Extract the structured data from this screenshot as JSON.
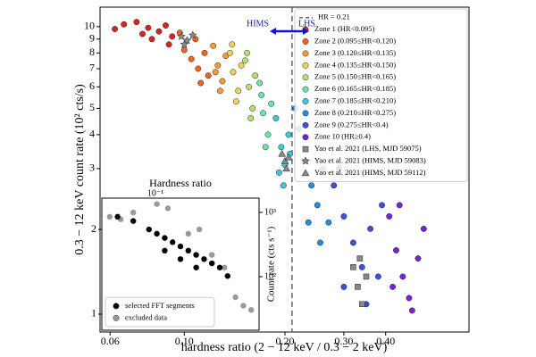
{
  "chart_data": [
    {
      "type": "scatter",
      "x_label": "hardness ratio (2 − 12 keV / 0.3 − 2 keV)",
      "y_label": "0.3 − 12 keV count rate (10² cts/s)",
      "xscale": "log",
      "yscale": "log",
      "xlim": [
        0.056,
        0.71
      ],
      "ylim": [
        0.75,
        11.8
      ],
      "xticks": [
        0.06,
        {
          "value": 0.1,
          "label": "0.10"
        },
        {
          "value": 0.2,
          "label": "0.20"
        },
        {
          "value": 0.3,
          "label": "0.30"
        },
        {
          "value": 0.4,
          "label": "0.40"
        }
      ],
      "yticks": [
        3,
        4,
        5,
        6,
        7,
        8,
        9,
        10
      ],
      "vline": {
        "value": 0.21,
        "label": "HR = 0.21"
      },
      "annotations": [
        "HIMS",
        "LHS"
      ],
      "legend": "upper right",
      "series": [
        {
          "name": "Zone 1 (HR<0.095)",
          "color": "#d8241a",
          "marker": "circle",
          "x": [
            0.066,
            0.072,
            0.078,
            0.084,
            0.088,
            0.092,
            0.08,
            0.09,
            0.062,
            0.075
          ],
          "values": [
            10.2,
            10.4,
            9.9,
            9.6,
            10.1,
            9.2,
            9.0,
            8.6,
            9.8,
            9.4
          ]
        },
        {
          "name": "Zone 2 (0.095≤HR<0.120)",
          "color": "#ee6420",
          "marker": "circle",
          "x": [
            0.097,
            0.1,
            0.105,
            0.11,
            0.115,
            0.118,
            0.108,
            0.112
          ],
          "values": [
            9.5,
            8.2,
            7.6,
            7.0,
            8.0,
            6.6,
            9.0,
            6.2
          ]
        },
        {
          "name": "Zone 3 (0.120≤HR<0.135)",
          "color": "#f39c38",
          "marker": "circle",
          "x": [
            0.122,
            0.126,
            0.13,
            0.133,
            0.128,
            0.124
          ],
          "values": [
            8.5,
            7.2,
            6.3,
            7.8,
            5.8,
            6.8
          ]
        },
        {
          "name": "Zone 4 (0.135≤HR<0.150)",
          "color": "#eed35a",
          "marker": "circle",
          "x": [
            0.137,
            0.14,
            0.145,
            0.148,
            0.143,
            0.139
          ],
          "values": [
            8.0,
            6.8,
            5.8,
            7.2,
            5.3,
            8.6
          ]
        },
        {
          "name": "Zone 5 (0.150≤HR<0.165)",
          "color": "#b2e26e",
          "marker": "circle",
          "x": [
            0.152,
            0.156,
            0.16,
            0.163,
            0.158,
            0.154
          ],
          "values": [
            7.5,
            6.0,
            5.0,
            6.6,
            4.6,
            8.0
          ]
        },
        {
          "name": "Zone 6 (0.165≤HR<0.185)",
          "color": "#6ee6a2",
          "marker": "circle",
          "x": [
            0.168,
            0.172,
            0.178,
            0.182,
            0.175,
            0.17
          ],
          "values": [
            6.2,
            4.8,
            4.0,
            5.2,
            3.6,
            5.6
          ]
        },
        {
          "name": "Zone 7 (0.185≤HR<0.210)",
          "color": "#3ccbd6",
          "marker": "circle",
          "x": [
            0.188,
            0.195,
            0.2,
            0.205,
            0.198,
            0.207,
            0.192
          ],
          "values": [
            4.6,
            3.6,
            3.1,
            4.0,
            2.6,
            3.4,
            2.9
          ]
        },
        {
          "name": "Zone 8 (0.210≤HR<0.275)",
          "color": "#1f8fe0",
          "marker": "circle",
          "x": [
            0.22,
            0.23,
            0.24,
            0.25,
            0.26,
            0.27,
            0.235,
            0.215,
            0.255
          ],
          "values": [
            4.2,
            3.2,
            2.6,
            2.2,
            3.0,
            1.9,
            1.9,
            5.0,
            1.6
          ]
        },
        {
          "name": "Zone 9 (0.275≤HR<0.4)",
          "color": "#3d4fdc",
          "marker": "circle",
          "x": [
            0.28,
            0.3,
            0.32,
            0.34,
            0.36,
            0.38,
            0.3,
            0.39,
            0.29,
            0.35
          ],
          "values": [
            2.6,
            2.0,
            1.6,
            1.3,
            1.8,
            1.2,
            1.1,
            2.2,
            3.0,
            0.95
          ]
        },
        {
          "name": "Zone 10 (HR≥0.4)",
          "color": "#7a22d4",
          "marker": "circle",
          "x": [
            0.41,
            0.43,
            0.45,
            0.47,
            0.5,
            0.44,
            0.48,
            0.42,
            0.52
          ],
          "values": [
            2.0,
            1.5,
            1.2,
            1.0,
            1.4,
            2.2,
            0.9,
            1.1,
            1.8
          ]
        },
        {
          "name": "Yao et al. 2021 (LHS, MJD 59075)",
          "color": "#888888",
          "marker": "square",
          "x": [
            0.32,
            0.33,
            0.34,
            0.35,
            0.335
          ],
          "values": [
            1.3,
            1.1,
            0.95,
            1.2,
            1.4
          ]
        },
        {
          "name": "Yao et al. 2021 (HIMS, MJD 59083)",
          "color": "#888888",
          "marker": "star",
          "x": [
            0.098,
            0.102,
            0.106,
            0.1
          ],
          "values": [
            9.2,
            8.9,
            9.3,
            8.6
          ]
        },
        {
          "name": "Yao et al. 2021 (HIMS, MJD 59112)",
          "color": "#888888",
          "marker": "triangle",
          "x": [
            0.196,
            0.2,
            0.205,
            0.202
          ],
          "values": [
            3.4,
            3.2,
            3.3,
            3.0
          ]
        }
      ]
    },
    {
      "type": "scatter",
      "title": "Hardness ratio",
      "offset_text": "10⁻¹",
      "y2_label": "Count rate (cts s⁻¹)",
      "xlim": [
        0,
        1
      ],
      "ylim": [
        0.81,
        2.37
      ],
      "y2scale": "log",
      "y2lim": [
        14.7,
        1668
      ],
      "yticks": [
        1,
        2
      ],
      "y2ticks": [
        {
          "value": 100,
          "label": "10²"
        },
        {
          "value": 1000,
          "label": "10³"
        }
      ],
      "legend": "lower left",
      "series": [
        {
          "name": "excluded data",
          "color": "#999999",
          "x": [
            0.05,
            0.12,
            0.2,
            0.35,
            0.42,
            0.55,
            0.62,
            0.7,
            0.78,
            0.9,
            0.95,
            0.85
          ],
          "values": [
            2.15,
            2.12,
            2.2,
            2.3,
            2.25,
            1.95,
            2.0,
            1.7,
            1.55,
            1.1,
            1.05,
            1.2
          ]
        },
        {
          "name": "selected FFT segments",
          "color": "#000000",
          "x": [
            0.1,
            0.2,
            0.3,
            0.35,
            0.4,
            0.45,
            0.5,
            0.55,
            0.6,
            0.65,
            0.7,
            0.75,
            0.8,
            0.4,
            0.5,
            0.6
          ],
          "values": [
            2.15,
            2.1,
            2.0,
            1.95,
            1.9,
            1.85,
            1.8,
            1.75,
            1.7,
            1.65,
            1.6,
            1.55,
            1.45,
            1.75,
            1.65,
            1.55
          ]
        }
      ]
    }
  ]
}
